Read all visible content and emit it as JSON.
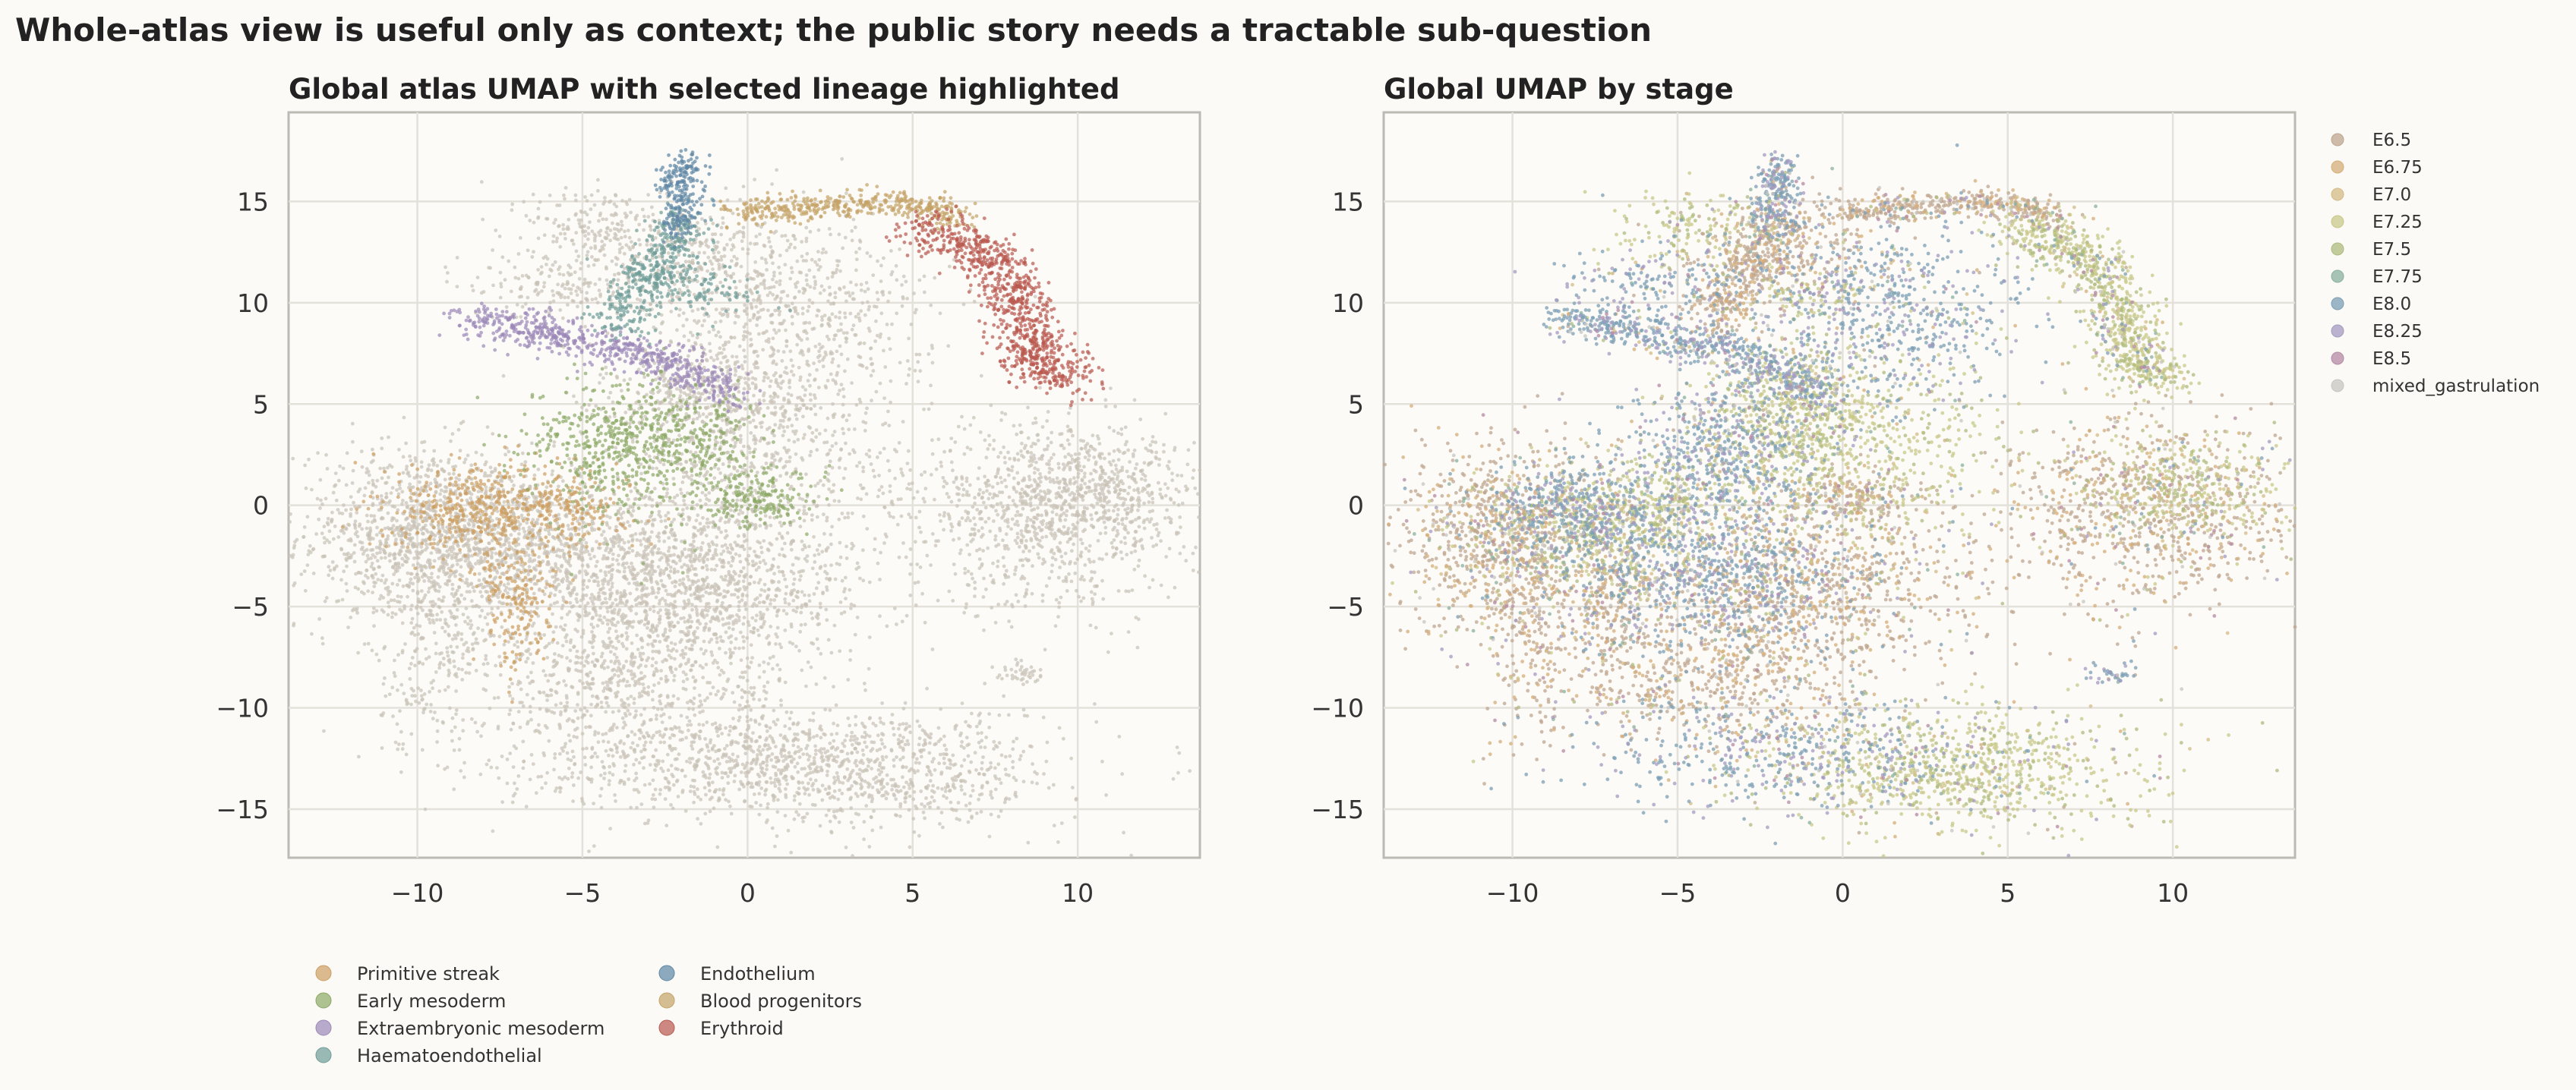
{
  "figure": {
    "suptitle": "Whole-atlas view is useful only as context; the public story needs a tractable sub-question"
  },
  "colors": {
    "background": "#fbfaf7",
    "plot_bg": "#fcfbf8",
    "spine": "#bdbab4",
    "grid": "#e4e1db",
    "text": "#333333",
    "background_cells": "#c9c2b7"
  },
  "chart_data": [
    {
      "type": "scatter",
      "title": "Global atlas UMAP with selected lineage highlighted",
      "xlabel": "",
      "ylabel": "",
      "xlim": [
        -13.9,
        13.7
      ],
      "ylim": [
        -17.4,
        19.4
      ],
      "xticks": [
        -10,
        -5,
        0,
        5,
        10
      ],
      "yticks": [
        -15,
        -10,
        -5,
        0,
        5,
        10,
        15
      ],
      "xtick_labels": [
        "−10",
        "−5",
        "0",
        "5",
        "10"
      ],
      "ytick_labels": [
        "−15",
        "−10",
        "−5",
        "0",
        "5",
        "10",
        "15"
      ],
      "grid": true,
      "legend_position": "bottom-left-outside",
      "background_series": {
        "name": "",
        "color": "#c9c2b7"
      },
      "series": [
        {
          "name": "Primitive streak",
          "color": "#cc9e61"
        },
        {
          "name": "Early mesoderm",
          "color": "#8ca865"
        },
        {
          "name": "Extraembryonic mesoderm",
          "color": "#9b87b8"
        },
        {
          "name": "Haematoendothelial",
          "color": "#6f9d98"
        },
        {
          "name": "Endothelium",
          "color": "#5e86a4"
        },
        {
          "name": "Blood progenitors",
          "color": "#c4a266"
        },
        {
          "name": "Erythroid",
          "color": "#b9584f"
        }
      ]
    },
    {
      "type": "scatter",
      "title": "Global UMAP by stage",
      "xlabel": "",
      "ylabel": "",
      "xlim": [
        -13.9,
        13.7
      ],
      "ylim": [
        -17.4,
        19.4
      ],
      "xticks": [
        -10,
        -5,
        0,
        5,
        10
      ],
      "yticks": [
        -15,
        -10,
        -5,
        0,
        5,
        10,
        15
      ],
      "xtick_labels": [
        "−10",
        "−5",
        "0",
        "5",
        "10"
      ],
      "ytick_labels": [
        "−15",
        "−10",
        "−5",
        "0",
        "5",
        "10",
        "15"
      ],
      "grid": true,
      "legend_position": "right-outside",
      "series": [
        {
          "name": "E6.5",
          "color": "#bfa58f"
        },
        {
          "name": "E6.75",
          "color": "#d5ae7a"
        },
        {
          "name": "E7.0",
          "color": "#d4bb86"
        },
        {
          "name": "E7.25",
          "color": "#c8c88a"
        },
        {
          "name": "E7.5",
          "color": "#aebb7e"
        },
        {
          "name": "E7.75",
          "color": "#8ab0a0"
        },
        {
          "name": "E8.0",
          "color": "#7c9fb5"
        },
        {
          "name": "E8.25",
          "color": "#a49ac0"
        },
        {
          "name": "E8.5",
          "color": "#b68aa6"
        },
        {
          "name": "mixed_gastrulation",
          "color": "#c8c5c0"
        }
      ]
    }
  ]
}
